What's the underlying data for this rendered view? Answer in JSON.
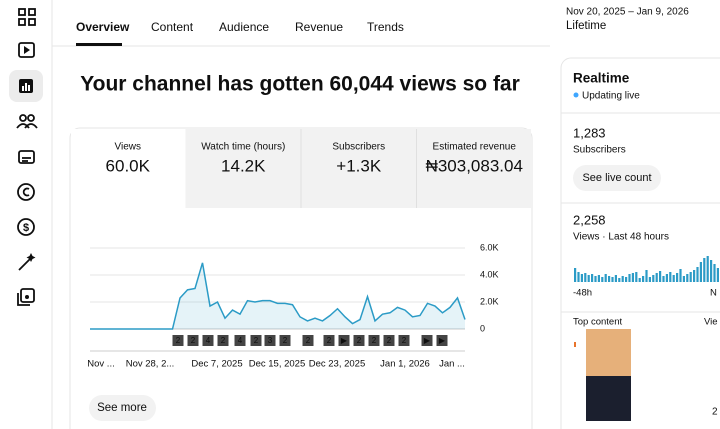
{
  "tabs": [
    "Overview",
    "Content",
    "Audience",
    "Revenue",
    "Trends"
  ],
  "date_range": "Nov 20, 2025 – Jan 9, 2026",
  "period": "Lifetime",
  "headline": "Your channel has gotten 60,044 views so far",
  "metrics": [
    {
      "label": "Views",
      "value": "60.0K"
    },
    {
      "label": "Watch time (hours)",
      "value": "14.2K"
    },
    {
      "label": "Subscribers",
      "value": "+1.3K"
    },
    {
      "label": "Estimated revenue",
      "value": "₦303,083.04"
    }
  ],
  "chart": {
    "type": "line",
    "color": "#2b9bc6",
    "x_labels": [
      "Nov ...",
      "Nov 28, 2...",
      "Dec 7, 2025",
      "Dec 15, 2025",
      "Dec 23, 2025",
      "Jan 1, 2026",
      "Jan ..."
    ],
    "values": [
      0,
      0,
      0,
      0,
      0,
      0,
      0,
      0,
      0,
      0,
      0,
      0,
      2300,
      2900,
      3000,
      4900,
      1700,
      2000,
      800,
      1400,
      1100,
      2100,
      2000,
      2100,
      2100,
      1900,
      1900,
      1800,
      900,
      600,
      800,
      600,
      1000,
      1500,
      900,
      400,
      700,
      2400,
      600,
      1100,
      1200,
      1600,
      1400,
      900,
      1000,
      1900,
      1700,
      1200,
      1600,
      2300,
      700
    ],
    "ylim": [
      0,
      6000
    ],
    "yticks": [
      {
        "value": 6000,
        "label": "6.0K"
      },
      {
        "value": 4000,
        "label": "4.0K"
      },
      {
        "value": 2000,
        "label": "2.0K"
      },
      0
    ],
    "markers": [
      "2",
      "2",
      "4",
      "2",
      "4",
      "2",
      "3",
      "2",
      "2",
      "2",
      "▶",
      "2",
      "2",
      "2",
      "2",
      "▶",
      "▶"
    ]
  },
  "see_more": "See more",
  "realtime": {
    "title": "Realtime",
    "status": "Updating live",
    "subscribers": "1,283",
    "subscribers_label": "Subscribers",
    "button": "See live count",
    "views": "2,258",
    "views_label": "Views · Last 48 hours",
    "bars": [
      14,
      10,
      8,
      9,
      7,
      8,
      6,
      7,
      5,
      8,
      6,
      5,
      7,
      4,
      6,
      5,
      8,
      9,
      10,
      4,
      6,
      12,
      5,
      7,
      9,
      11,
      6,
      8,
      10,
      7,
      9,
      13,
      6,
      8,
      10,
      12,
      15,
      20,
      24,
      26,
      22,
      18,
      14
    ],
    "start_label": "-48h",
    "end_label": "N",
    "top_content": "Top content",
    "views_col": "Vie",
    "rank_value": "2"
  }
}
